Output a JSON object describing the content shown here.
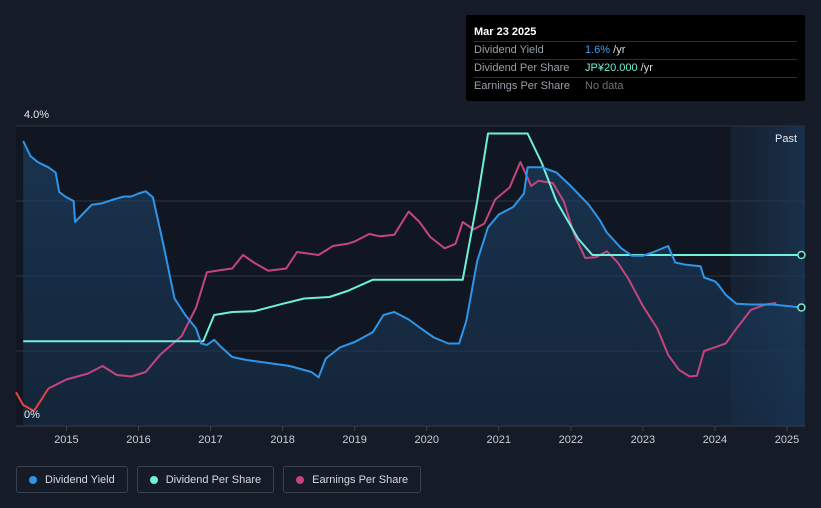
{
  "tooltip": {
    "date": "Mar 23 2025",
    "rows": [
      {
        "label": "Dividend Yield",
        "value": "1.6%",
        "unit": " /yr"
      },
      {
        "label": "Dividend Per Share",
        "value": "JP¥20.000",
        "unit": " /yr"
      },
      {
        "label": "Earnings Per Share",
        "value": "No data",
        "unit": ""
      }
    ]
  },
  "legend": [
    {
      "label": "Dividend Yield",
      "color": "#2e95e8"
    },
    {
      "label": "Dividend Per Share",
      "color": "#6ff0d8"
    },
    {
      "label": "Earnings Per Share",
      "color": "#c4457c"
    }
  ],
  "chart_data": {
    "type": "line",
    "y_axis_labels": [
      "4.0%",
      "0%"
    ],
    "ylim": [
      0,
      4.0
    ],
    "xlim": [
      2014.3,
      2025.25
    ],
    "x_ticks": [
      2015,
      2016,
      2017,
      2018,
      2019,
      2020,
      2021,
      2022,
      2023,
      2024,
      2025
    ],
    "past_label": "Past",
    "past_region_start": 2024.22,
    "grid": true,
    "series": [
      {
        "name": "Dividend Yield",
        "color": "#2e95e8",
        "points": [
          [
            2014.4,
            3.8
          ],
          [
            2014.5,
            3.6
          ],
          [
            2014.6,
            3.52
          ],
          [
            2014.75,
            3.45
          ],
          [
            2014.85,
            3.38
          ],
          [
            2014.9,
            3.12
          ],
          [
            2015.0,
            3.05
          ],
          [
            2015.1,
            3.0
          ],
          [
            2015.12,
            2.72
          ],
          [
            2015.2,
            2.8
          ],
          [
            2015.35,
            2.95
          ],
          [
            2015.5,
            2.97
          ],
          [
            2015.65,
            3.02
          ],
          [
            2015.8,
            3.06
          ],
          [
            2015.9,
            3.06
          ],
          [
            2016.0,
            3.1
          ],
          [
            2016.1,
            3.13
          ],
          [
            2016.2,
            3.05
          ],
          [
            2016.35,
            2.4
          ],
          [
            2016.5,
            1.7
          ],
          [
            2016.65,
            1.48
          ],
          [
            2016.8,
            1.3
          ],
          [
            2016.87,
            1.1
          ],
          [
            2016.95,
            1.08
          ],
          [
            2017.05,
            1.15
          ],
          [
            2017.15,
            1.05
          ],
          [
            2017.3,
            0.92
          ],
          [
            2017.5,
            0.88
          ],
          [
            2017.8,
            0.84
          ],
          [
            2018.1,
            0.8
          ],
          [
            2018.4,
            0.72
          ],
          [
            2018.5,
            0.65
          ],
          [
            2018.6,
            0.9
          ],
          [
            2018.8,
            1.05
          ],
          [
            2019.0,
            1.12
          ],
          [
            2019.25,
            1.25
          ],
          [
            2019.4,
            1.48
          ],
          [
            2019.55,
            1.52
          ],
          [
            2019.75,
            1.42
          ],
          [
            2019.95,
            1.28
          ],
          [
            2020.1,
            1.18
          ],
          [
            2020.3,
            1.1
          ],
          [
            2020.45,
            1.1
          ],
          [
            2020.55,
            1.4
          ],
          [
            2020.7,
            2.2
          ],
          [
            2020.85,
            2.65
          ],
          [
            2021.0,
            2.82
          ],
          [
            2021.2,
            2.92
          ],
          [
            2021.35,
            3.1
          ],
          [
            2021.4,
            3.45
          ],
          [
            2021.6,
            3.45
          ],
          [
            2021.8,
            3.38
          ],
          [
            2022.0,
            3.2
          ],
          [
            2022.25,
            2.95
          ],
          [
            2022.4,
            2.75
          ],
          [
            2022.5,
            2.58
          ],
          [
            2022.7,
            2.37
          ],
          [
            2022.85,
            2.27
          ],
          [
            2023.0,
            2.27
          ],
          [
            2023.15,
            2.32
          ],
          [
            2023.35,
            2.4
          ],
          [
            2023.45,
            2.18
          ],
          [
            2023.6,
            2.15
          ],
          [
            2023.8,
            2.13
          ],
          [
            2023.85,
            1.98
          ],
          [
            2024.0,
            1.93
          ],
          [
            2024.05,
            1.88
          ],
          [
            2024.15,
            1.75
          ],
          [
            2024.3,
            1.63
          ],
          [
            2024.5,
            1.62
          ],
          [
            2024.8,
            1.62
          ],
          [
            2025.0,
            1.6
          ],
          [
            2025.2,
            1.58
          ]
        ]
      },
      {
        "name": "Dividend Per Share",
        "color": "#6ff0d8",
        "points": [
          [
            2014.4,
            1.13
          ],
          [
            2016.9,
            1.13
          ],
          [
            2017.05,
            1.48
          ],
          [
            2017.3,
            1.52
          ],
          [
            2017.6,
            1.53
          ],
          [
            2018.0,
            1.63
          ],
          [
            2018.3,
            1.7
          ],
          [
            2018.65,
            1.72
          ],
          [
            2018.9,
            1.8
          ],
          [
            2019.25,
            1.95
          ],
          [
            2019.4,
            1.95
          ],
          [
            2020.5,
            1.95
          ],
          [
            2020.7,
            3.0
          ],
          [
            2020.85,
            3.9
          ],
          [
            2021.0,
            3.9
          ],
          [
            2021.4,
            3.9
          ],
          [
            2021.6,
            3.5
          ],
          [
            2021.8,
            3.0
          ],
          [
            2022.1,
            2.5
          ],
          [
            2022.3,
            2.28
          ],
          [
            2022.6,
            2.28
          ],
          [
            2025.2,
            2.28
          ]
        ]
      },
      {
        "name": "Earnings Per Share",
        "color": "#c4457c",
        "points": [
          [
            2014.3,
            0.45
          ],
          [
            2014.4,
            0.28
          ],
          [
            2014.55,
            0.2
          ],
          [
            2014.75,
            0.5
          ],
          [
            2015.0,
            0.62
          ],
          [
            2015.3,
            0.7
          ],
          [
            2015.5,
            0.8
          ],
          [
            2015.7,
            0.68
          ],
          [
            2015.9,
            0.66
          ],
          [
            2016.1,
            0.72
          ],
          [
            2016.3,
            0.95
          ],
          [
            2016.6,
            1.2
          ],
          [
            2016.8,
            1.58
          ],
          [
            2016.95,
            2.05
          ],
          [
            2017.15,
            2.08
          ],
          [
            2017.3,
            2.1
          ],
          [
            2017.45,
            2.28
          ],
          [
            2017.6,
            2.18
          ],
          [
            2017.8,
            2.07
          ],
          [
            2018.05,
            2.1
          ],
          [
            2018.2,
            2.32
          ],
          [
            2018.35,
            2.3
          ],
          [
            2018.5,
            2.28
          ],
          [
            2018.7,
            2.4
          ],
          [
            2018.9,
            2.43
          ],
          [
            2019.0,
            2.46
          ],
          [
            2019.2,
            2.56
          ],
          [
            2019.35,
            2.53
          ],
          [
            2019.55,
            2.55
          ],
          [
            2019.75,
            2.86
          ],
          [
            2019.9,
            2.72
          ],
          [
            2020.05,
            2.52
          ],
          [
            2020.25,
            2.37
          ],
          [
            2020.4,
            2.43
          ],
          [
            2020.5,
            2.72
          ],
          [
            2020.65,
            2.62
          ],
          [
            2020.8,
            2.7
          ],
          [
            2020.95,
            3.02
          ],
          [
            2021.15,
            3.18
          ],
          [
            2021.3,
            3.52
          ],
          [
            2021.45,
            3.2
          ],
          [
            2021.55,
            3.27
          ],
          [
            2021.75,
            3.24
          ],
          [
            2021.9,
            3.0
          ],
          [
            2022.05,
            2.55
          ],
          [
            2022.2,
            2.24
          ],
          [
            2022.35,
            2.25
          ],
          [
            2022.5,
            2.33
          ],
          [
            2022.65,
            2.18
          ],
          [
            2022.8,
            1.96
          ],
          [
            2023.0,
            1.6
          ],
          [
            2023.2,
            1.3
          ],
          [
            2023.35,
            0.95
          ],
          [
            2023.5,
            0.75
          ],
          [
            2023.65,
            0.66
          ],
          [
            2023.75,
            0.67
          ],
          [
            2023.85,
            1.0
          ],
          [
            2024.0,
            1.05
          ],
          [
            2024.15,
            1.1
          ],
          [
            2024.3,
            1.3
          ],
          [
            2024.5,
            1.55
          ],
          [
            2024.7,
            1.62
          ],
          [
            2024.85,
            1.64
          ]
        ]
      }
    ]
  }
}
